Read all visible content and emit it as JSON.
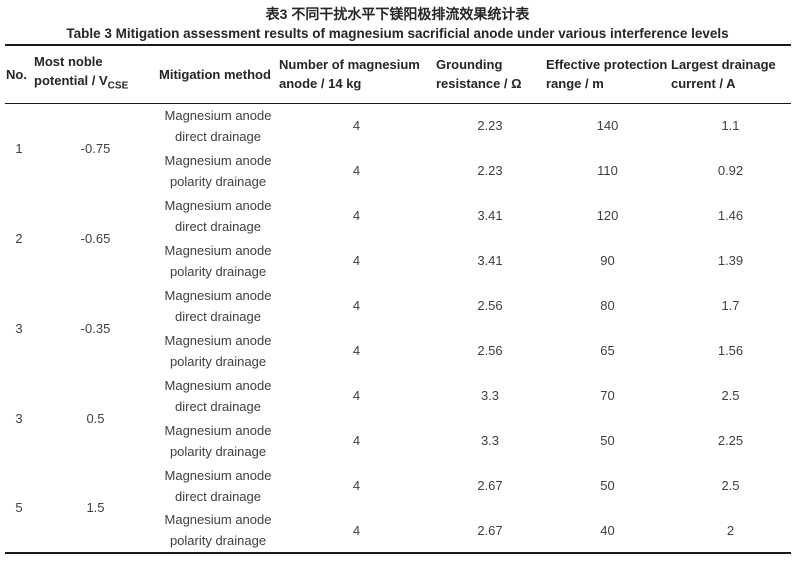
{
  "page": {
    "title_zh": "表3 不同干扰水平下镁阳极排流效果统计表",
    "title_en": "Table 3 Mitigation assessment results of magnesium sacrificial anode under various interference levels"
  },
  "colors": {
    "text": "#3f3f3f",
    "heading": "#262626",
    "rule": "#1a1a1a",
    "background": "#ffffff"
  },
  "table": {
    "headers": [
      {
        "label": "No."
      },
      {
        "label": "Most noble potential / V",
        "sub": "CSE"
      },
      {
        "label": "Mitigation method"
      },
      {
        "label": "Number of magnesium anode / 14 kg"
      },
      {
        "label": "Grounding resistance / Ω"
      },
      {
        "label": "Effective protection range / m"
      },
      {
        "label": "Largest drainage current / A"
      }
    ],
    "groups": [
      {
        "no": "1",
        "potential": "-0.75",
        "rows": [
          {
            "method": [
              "Magnesium anode",
              "direct drainage"
            ],
            "anode_count": "4",
            "grounding_resistance": "2.23",
            "protection_range": "140",
            "drainage_current": "1.1"
          },
          {
            "method": [
              "Magnesium anode",
              "polarity drainage"
            ],
            "anode_count": "4",
            "grounding_resistance": "2.23",
            "protection_range": "110",
            "drainage_current": "0.92"
          }
        ]
      },
      {
        "no": "2",
        "potential": "-0.65",
        "rows": [
          {
            "method": [
              "Magnesium anode",
              "direct drainage"
            ],
            "anode_count": "4",
            "grounding_resistance": "3.41",
            "protection_range": "120",
            "drainage_current": "1.46"
          },
          {
            "method": [
              "Magnesium anode",
              "polarity drainage"
            ],
            "anode_count": "4",
            "grounding_resistance": "3.41",
            "protection_range": "90",
            "drainage_current": "1.39"
          }
        ]
      },
      {
        "no": "3",
        "potential": "-0.35",
        "rows": [
          {
            "method": [
              "Magnesium anode",
              "direct drainage"
            ],
            "anode_count": "4",
            "grounding_resistance": "2.56",
            "protection_range": "80",
            "drainage_current": "1.7"
          },
          {
            "method": [
              "Magnesium anode",
              "polarity drainage"
            ],
            "anode_count": "4",
            "grounding_resistance": "2.56",
            "protection_range": "65",
            "drainage_current": "1.56"
          }
        ]
      },
      {
        "no": "3",
        "potential": "0.5",
        "rows": [
          {
            "method": [
              "Magnesium anode",
              "direct drainage"
            ],
            "anode_count": "4",
            "grounding_resistance": "3.3",
            "protection_range": "70",
            "drainage_current": "2.5"
          },
          {
            "method": [
              "Magnesium anode",
              "polarity drainage"
            ],
            "anode_count": "4",
            "grounding_resistance": "3.3",
            "protection_range": "50",
            "drainage_current": "2.25"
          }
        ]
      },
      {
        "no": "5",
        "potential": "1.5",
        "rows": [
          {
            "method": [
              "Magnesium anode",
              "direct drainage"
            ],
            "anode_count": "4",
            "grounding_resistance": "2.67",
            "protection_range": "50",
            "drainage_current": "2.5"
          },
          {
            "method": [
              "Magnesium anode",
              "polarity drainage"
            ],
            "anode_count": "4",
            "grounding_resistance": "2.67",
            "protection_range": "40",
            "drainage_current": "2"
          }
        ]
      }
    ]
  }
}
